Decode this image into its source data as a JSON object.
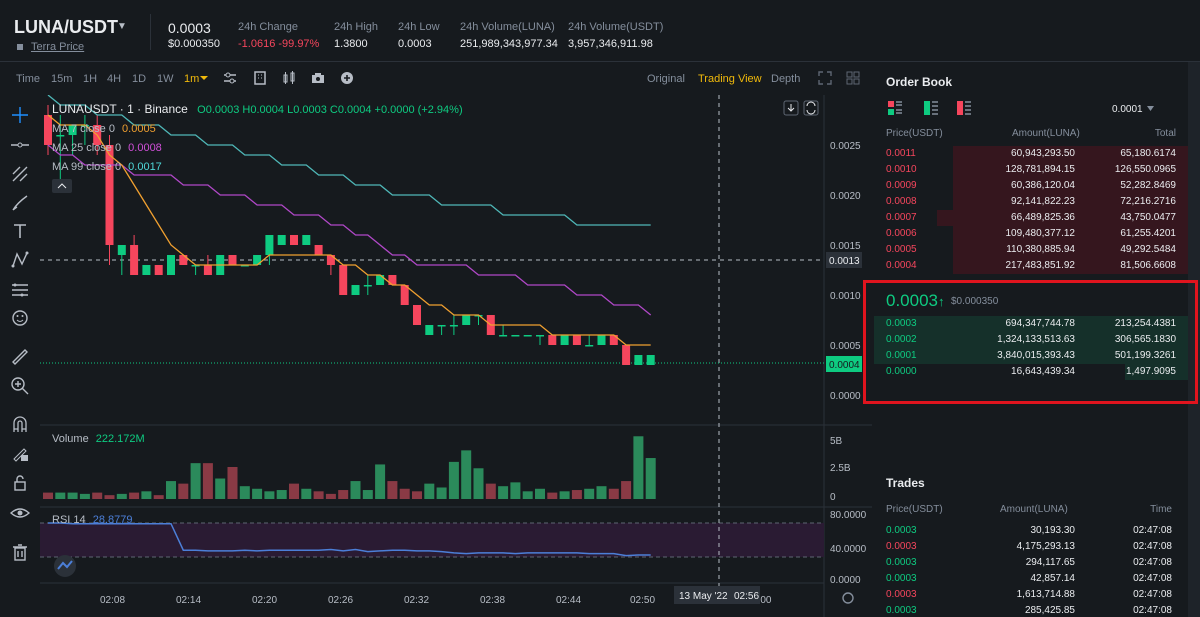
{
  "header": {
    "pair": "LUNA/USDT",
    "caret": "▼",
    "link": "Terra Price",
    "last_price": "0.0003",
    "last_price_usd": "$0.000350",
    "stats": [
      {
        "label": "24h Change",
        "value": "-1.0616 -99.97%",
        "red": true
      },
      {
        "label": "24h High",
        "value": "1.3800"
      },
      {
        "label": "24h Low",
        "value": "0.0003"
      },
      {
        "label": "24h Volume(LUNA)",
        "value": "251,989,343,977.34"
      },
      {
        "label": "24h Volume(USDT)",
        "value": "3,957,346,911.98"
      }
    ]
  },
  "toolbar": {
    "intervals": [
      "Time",
      "15m",
      "1H",
      "4H",
      "1D",
      "1W",
      "1m"
    ],
    "active_interval": "1m",
    "views": [
      "Original",
      "Trading View",
      "Depth"
    ],
    "active_view": "Trading View"
  },
  "chart": {
    "legend_title": "LUNAUSDT · 1 · Binance",
    "ohlc": "O0.0003 H0.0004 L0.0003 C0.0004 +0.0000 (+2.94%)",
    "ma7_label": "MA 7 close 0",
    "ma7_value": "0.0005",
    "ma25_label": "MA 25 close 0",
    "ma25_value": "0.0008",
    "ma99_label": "MA 99 close 0",
    "ma99_value": "0.0017",
    "price_ticks": [
      "0.0025",
      "0.0020",
      "0.0015",
      "0.0010",
      "0.0005",
      "0.0000"
    ],
    "crosshair_price": "0.0013",
    "last_price_tag": "0.0004",
    "volume_label": "Volume",
    "volume_value": "222.172M",
    "volume_ticks": [
      "5B",
      "2.5B",
      "0"
    ],
    "rsi_label": "RSI 14",
    "rsi_value": "28.8779",
    "rsi_ticks": [
      "80.0000",
      "40.0000",
      "0.0000"
    ],
    "time_ticks": [
      "02:08",
      "02:14",
      "02:20",
      "02:26",
      "02:32",
      "02:38",
      "02:44",
      "02:50",
      "3:00"
    ],
    "crosshair_date": "13 May '22",
    "crosshair_time": "02:56",
    "colors": {
      "up": "#0ecb81",
      "down": "#f6465d",
      "ma7": "#f0a030",
      "ma25": "#b148c8",
      "ma99": "#4fb8b8"
    }
  },
  "chart_data": {
    "type": "candlestick",
    "title": "LUNAUSDT · 1 · Binance",
    "candles": [
      {
        "o": 0.0028,
        "h": 0.0029,
        "l": 0.0024,
        "c": 0.0025
      },
      {
        "o": 0.0026,
        "h": 0.0028,
        "l": 0.0021,
        "c": 0.0026
      },
      {
        "o": 0.0026,
        "h": 0.0027,
        "l": 0.0024,
        "c": 0.0027
      },
      {
        "o": 0.0027,
        "h": 0.0028,
        "l": 0.0025,
        "c": 0.0027
      },
      {
        "o": 0.0027,
        "h": 0.0028,
        "l": 0.0024,
        "c": 0.0025
      },
      {
        "o": 0.0025,
        "h": 0.0026,
        "l": 0.0013,
        "c": 0.0015
      },
      {
        "o": 0.0014,
        "h": 0.0015,
        "l": 0.0012,
        "c": 0.0015
      },
      {
        "o": 0.0015,
        "h": 0.0016,
        "l": 0.0012,
        "c": 0.0012
      },
      {
        "o": 0.0012,
        "h": 0.0013,
        "l": 0.0012,
        "c": 0.0013
      },
      {
        "o": 0.0013,
        "h": 0.0013,
        "l": 0.0012,
        "c": 0.0012
      },
      {
        "o": 0.0012,
        "h": 0.0014,
        "l": 0.0012,
        "c": 0.0014
      },
      {
        "o": 0.0014,
        "h": 0.0014,
        "l": 0.0013,
        "c": 0.0013
      },
      {
        "o": 0.0013,
        "h": 0.0013,
        "l": 0.0012,
        "c": 0.0013
      },
      {
        "o": 0.0013,
        "h": 0.0014,
        "l": 0.0012,
        "c": 0.0012
      },
      {
        "o": 0.0012,
        "h": 0.0014,
        "l": 0.0012,
        "c": 0.0014
      },
      {
        "o": 0.0014,
        "h": 0.0014,
        "l": 0.0013,
        "c": 0.0013
      },
      {
        "o": 0.0013,
        "h": 0.0013,
        "l": 0.0013,
        "c": 0.0013
      },
      {
        "o": 0.0013,
        "h": 0.0014,
        "l": 0.0013,
        "c": 0.0014
      },
      {
        "o": 0.0014,
        "h": 0.0016,
        "l": 0.0013,
        "c": 0.0016
      },
      {
        "o": 0.0015,
        "h": 0.0016,
        "l": 0.0015,
        "c": 0.0016
      },
      {
        "o": 0.0016,
        "h": 0.0016,
        "l": 0.0015,
        "c": 0.0015
      },
      {
        "o": 0.0015,
        "h": 0.0016,
        "l": 0.0015,
        "c": 0.0016
      },
      {
        "o": 0.0015,
        "h": 0.0015,
        "l": 0.0014,
        "c": 0.0014
      },
      {
        "o": 0.0014,
        "h": 0.0014,
        "l": 0.0012,
        "c": 0.0013
      },
      {
        "o": 0.0013,
        "h": 0.0013,
        "l": 0.001,
        "c": 0.001
      },
      {
        "o": 0.001,
        "h": 0.0011,
        "l": 0.001,
        "c": 0.0011
      },
      {
        "o": 0.0011,
        "h": 0.0012,
        "l": 0.001,
        "c": 0.0011
      },
      {
        "o": 0.0011,
        "h": 0.0012,
        "l": 0.0011,
        "c": 0.0012
      },
      {
        "o": 0.0012,
        "h": 0.0012,
        "l": 0.0011,
        "c": 0.0011
      },
      {
        "o": 0.0011,
        "h": 0.0011,
        "l": 0.0009,
        "c": 0.0009
      },
      {
        "o": 0.0009,
        "h": 0.0009,
        "l": 0.0007,
        "c": 0.0007
      },
      {
        "o": 0.0006,
        "h": 0.0007,
        "l": 0.0006,
        "c": 0.0007
      },
      {
        "o": 0.0007,
        "h": 0.0007,
        "l": 0.0006,
        "c": 0.0007
      },
      {
        "o": 0.0007,
        "h": 0.0008,
        "l": 0.0006,
        "c": 0.0007
      },
      {
        "o": 0.0007,
        "h": 0.0008,
        "l": 0.0007,
        "c": 0.0008
      },
      {
        "o": 0.0008,
        "h": 0.0008,
        "l": 0.0007,
        "c": 0.0008
      },
      {
        "o": 0.0008,
        "h": 0.0008,
        "l": 0.0006,
        "c": 0.0006
      },
      {
        "o": 0.0006,
        "h": 0.0007,
        "l": 0.0006,
        "c": 0.0006
      },
      {
        "o": 0.0006,
        "h": 0.0006,
        "l": 0.0006,
        "c": 0.0006
      },
      {
        "o": 0.0006,
        "h": 0.0006,
        "l": 0.0006,
        "c": 0.0006
      },
      {
        "o": 0.0006,
        "h": 0.0006,
        "l": 0.0005,
        "c": 0.0006
      },
      {
        "o": 0.0006,
        "h": 0.0006,
        "l": 0.0005,
        "c": 0.0005
      },
      {
        "o": 0.0005,
        "h": 0.0006,
        "l": 0.0005,
        "c": 0.0006
      },
      {
        "o": 0.0006,
        "h": 0.0006,
        "l": 0.0005,
        "c": 0.0005
      },
      {
        "o": 0.0005,
        "h": 0.0006,
        "l": 0.0005,
        "c": 0.0005
      },
      {
        "o": 0.0005,
        "h": 0.0006,
        "l": 0.0005,
        "c": 0.0006
      },
      {
        "o": 0.0006,
        "h": 0.0006,
        "l": 0.0005,
        "c": 0.0005
      },
      {
        "o": 0.0005,
        "h": 0.0005,
        "l": 0.0003,
        "c": 0.0003
      },
      {
        "o": 0.0003,
        "h": 0.0004,
        "l": 0.0003,
        "c": 0.0004
      },
      {
        "o": 0.0003,
        "h": 0.0004,
        "l": 0.0003,
        "c": 0.0004
      }
    ],
    "ma7": [
      0.0028,
      0.0027,
      0.0027,
      0.0027,
      0.0026,
      0.0024,
      0.0023,
      0.0021,
      0.0019,
      0.0017,
      0.0015,
      0.0014,
      0.0013,
      0.0013,
      0.0013,
      0.0013,
      0.0013,
      0.0013,
      0.0014,
      0.0014,
      0.0014,
      0.0014,
      0.0014,
      0.0014,
      0.0013,
      0.0013,
      0.0012,
      0.0012,
      0.0011,
      0.0011,
      0.001,
      0.0009,
      0.0009,
      0.0008,
      0.0008,
      0.0008,
      0.0007,
      0.0007,
      0.0007,
      0.0007,
      0.0007,
      0.0006,
      0.0006,
      0.0006,
      0.0006,
      0.0006,
      0.0006,
      0.0005,
      0.0005,
      0.0005
    ],
    "ma25": [
      0.0025,
      0.0024,
      0.0024,
      0.0023,
      0.0023,
      0.0023,
      0.0023,
      0.0022,
      0.0022,
      0.0022,
      0.0022,
      0.0021,
      0.0021,
      0.0021,
      0.002,
      0.002,
      0.002,
      0.0019,
      0.0019,
      0.0019,
      0.0018,
      0.0018,
      0.0018,
      0.0017,
      0.0017,
      0.0016,
      0.0016,
      0.0015,
      0.0014,
      0.0014,
      0.0013,
      0.0013,
      0.0013,
      0.0013,
      0.0013,
      0.0012,
      0.0012,
      0.0012,
      0.0012,
      0.0011,
      0.0011,
      0.0011,
      0.0011,
      0.001,
      0.001,
      0.001,
      0.0009,
      0.0009,
      0.0009,
      0.0008
    ],
    "ma99": [
      0.003,
      0.0029,
      0.0029,
      0.0029,
      0.0028,
      0.0028,
      0.0028,
      0.0027,
      0.0027,
      0.0027,
      0.0026,
      0.0026,
      0.0026,
      0.0025,
      0.0025,
      0.0025,
      0.0024,
      0.0024,
      0.0024,
      0.0023,
      0.0023,
      0.0023,
      0.0022,
      0.0022,
      0.0022,
      0.0021,
      0.0021,
      0.0021,
      0.002,
      0.002,
      0.002,
      0.002,
      0.0019,
      0.0019,
      0.0019,
      0.0019,
      0.0019,
      0.0018,
      0.0018,
      0.0018,
      0.0018,
      0.0018,
      0.0018,
      0.0017,
      0.0017,
      0.0017,
      0.0017,
      0.0017,
      0.0017,
      0.0017
    ],
    "volume": [
      0.5,
      0.5,
      0.5,
      0.4,
      0.5,
      0.3,
      0.4,
      0.5,
      0.6,
      0.3,
      1.4,
      1.2,
      2.8,
      2.8,
      1.6,
      2.5,
      1.0,
      0.8,
      0.6,
      0.7,
      1.2,
      0.8,
      0.6,
      0.4,
      0.7,
      1.4,
      0.7,
      2.7,
      1.4,
      0.8,
      0.6,
      1.2,
      0.9,
      2.9,
      3.8,
      2.4,
      1.2,
      1.0,
      1.3,
      0.6,
      0.8,
      0.5,
      0.6,
      0.7,
      0.8,
      1.0,
      0.8,
      1.4,
      4.9,
      3.2
    ],
    "ylim": [
      0,
      0.0028
    ]
  },
  "orderbook": {
    "title": "Order Book",
    "precision": "0.0001",
    "headers": [
      "Price(USDT)",
      "Amount(LUNA)",
      "Total"
    ],
    "asks": [
      {
        "price": "0.0011",
        "amount": "60,943,293.50",
        "total": "65,180.6174",
        "depth": 0.75
      },
      {
        "price": "0.0010",
        "amount": "128,781,894.15",
        "total": "126,550.0965",
        "depth": 0.75
      },
      {
        "price": "0.0009",
        "amount": "60,386,120.04",
        "total": "52,282.8469",
        "depth": 0.75
      },
      {
        "price": "0.0008",
        "amount": "92,141,822.23",
        "total": "72,216.2716",
        "depth": 0.75
      },
      {
        "price": "0.0007",
        "amount": "66,489,825.36",
        "total": "43,750.0477",
        "depth": 0.8
      },
      {
        "price": "0.0006",
        "amount": "109,480,377.12",
        "total": "61,255.4201",
        "depth": 0.75
      },
      {
        "price": "0.0005",
        "amount": "110,380,885.94",
        "total": "49,292.5484",
        "depth": 0.75
      },
      {
        "price": "0.0004",
        "amount": "217,483,851.92",
        "total": "81,506.6608",
        "depth": 0.75
      }
    ],
    "mid_price": "0.0003",
    "mid_arrow": "↑",
    "mid_usd": "$0.000350",
    "bids": [
      {
        "price": "0.0003",
        "amount": "694,347,744.78",
        "total": "213,254.4381",
        "depth": 1.0
      },
      {
        "price": "0.0002",
        "amount": "1,324,133,513.63",
        "total": "306,565.1830",
        "depth": 1.0
      },
      {
        "price": "0.0001",
        "amount": "3,840,015,393.43",
        "total": "501,199.3261",
        "depth": 1.0
      },
      {
        "price": "0.0000",
        "amount": "16,643,439.34",
        "total": "1,497.9095",
        "depth": 0.2
      }
    ]
  },
  "trades": {
    "title": "Trades",
    "headers": [
      "Price(USDT)",
      "Amount(LUNA)",
      "Time"
    ],
    "rows": [
      {
        "price": "0.0003",
        "amount": "30,193.30",
        "time": "02:47:08",
        "side": "buy"
      },
      {
        "price": "0.0003",
        "amount": "4,175,293.13",
        "time": "02:47:08",
        "side": "sell"
      },
      {
        "price": "0.0003",
        "amount": "294,117.65",
        "time": "02:47:08",
        "side": "buy"
      },
      {
        "price": "0.0003",
        "amount": "42,857.14",
        "time": "02:47:08",
        "side": "buy"
      },
      {
        "price": "0.0003",
        "amount": "1,613,714.88",
        "time": "02:47:08",
        "side": "sell"
      },
      {
        "price": "0.0003",
        "amount": "285,425.85",
        "time": "02:47:08",
        "side": "buy"
      }
    ]
  }
}
